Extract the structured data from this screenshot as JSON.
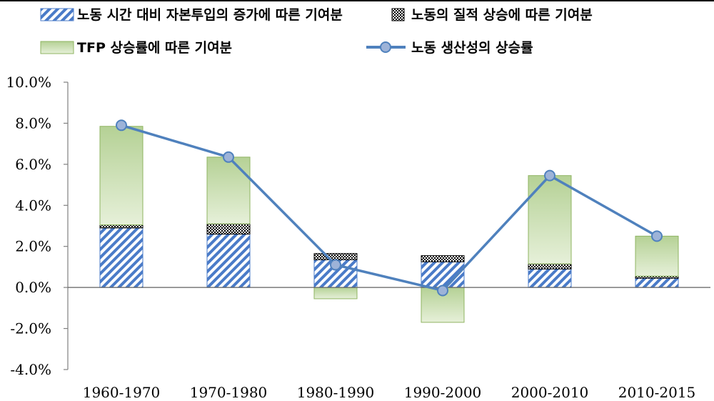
{
  "chart_data": {
    "type": "bar",
    "stacked": true,
    "categories": [
      "1960-1970",
      "1970-1980",
      "1980-1990",
      "1990-2000",
      "2000-2010",
      "2010-2015"
    ],
    "series": [
      {
        "name": "노동 시간 대비 자본투입의 증가에 따른 기여분",
        "kind": "bar",
        "pattern": "diagonal-stripes",
        "color": "#4a7bc8",
        "values": [
          2.9,
          2.6,
          1.35,
          1.25,
          0.9,
          0.45
        ]
      },
      {
        "name": "노동의 질적 상승에 따른 기여분",
        "kind": "bar",
        "pattern": "dots",
        "color": "#000000",
        "values": [
          0.15,
          0.5,
          0.3,
          0.3,
          0.25,
          0.1
        ]
      },
      {
        "name": "TFP 상승률에 따른 기여분",
        "kind": "bar",
        "color": "#c4dba4",
        "values": [
          4.8,
          3.25,
          -0.55,
          -1.7,
          4.3,
          1.95
        ]
      },
      {
        "name": "노동 생산성의 상승률",
        "kind": "line",
        "color": "#4f81bd",
        "values": [
          7.9,
          6.35,
          1.1,
          -0.15,
          5.45,
          2.5
        ]
      }
    ],
    "ylim": [
      -4.0,
      10.0
    ],
    "yticks": [
      "10.0%",
      "8.0%",
      "6.0%",
      "4.0%",
      "2.0%",
      "0.0%",
      "-2.0%",
      "-4.0%"
    ],
    "ytick_values": [
      10,
      8,
      6,
      4,
      2,
      0,
      -2,
      -4
    ],
    "grid": false,
    "legend_position": "top"
  }
}
